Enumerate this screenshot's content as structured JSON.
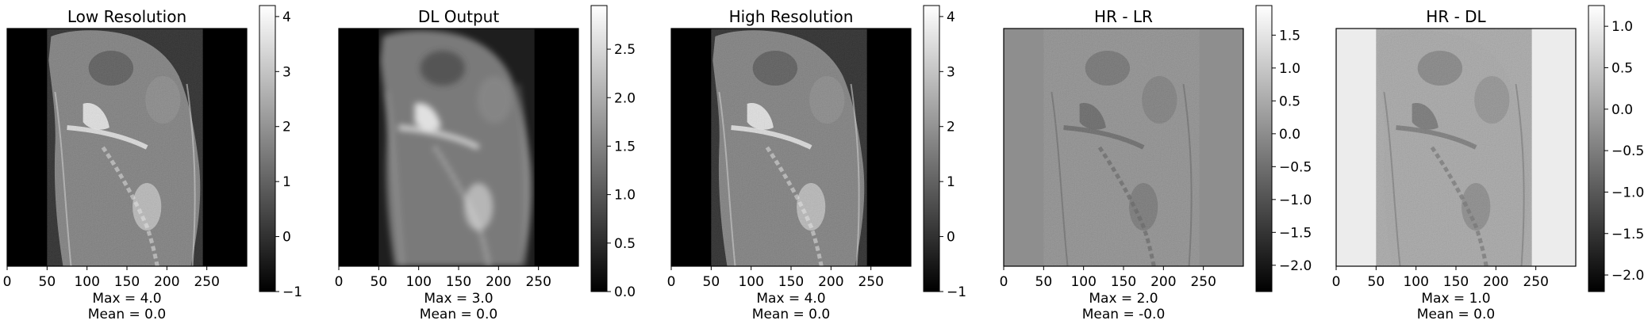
{
  "chart_data": [
    {
      "type": "heatmap",
      "title": "Low Resolution",
      "colormap": "gray",
      "x_ticks": [
        "0",
        "50",
        "100",
        "150",
        "200",
        "250"
      ],
      "x_range": [
        0,
        300
      ],
      "y_range": [
        0,
        300
      ],
      "colorbar": {
        "range": [
          -1.0,
          4.2
        ],
        "ticks": [
          4,
          3,
          2,
          1,
          0,
          -1
        ],
        "tick_labels": [
          "4",
          "3",
          "2",
          "1",
          "0",
          "−1"
        ]
      },
      "stats": {
        "max_label": "Max = 4.0",
        "mean_label": "Mean = 0.0"
      },
      "background": "dark",
      "band": [
        0,
        50,
        245,
        300
      ]
    },
    {
      "type": "heatmap",
      "title": "DL Output",
      "colormap": "gray",
      "x_ticks": [
        "0",
        "50",
        "100",
        "150",
        "200",
        "250"
      ],
      "x_range": [
        0,
        300
      ],
      "y_range": [
        0,
        300
      ],
      "colorbar": {
        "range": [
          0.0,
          2.95
        ],
        "ticks": [
          2.5,
          2.0,
          1.5,
          1.0,
          0.5,
          0.0
        ],
        "tick_labels": [
          "2.5",
          "2.0",
          "1.5",
          "1.0",
          "0.5",
          "0.0"
        ]
      },
      "stats": {
        "max_label": "Max = 3.0",
        "mean_label": "Mean = 0.0"
      },
      "background": "dark",
      "band": [
        0,
        50,
        245,
        300
      ]
    },
    {
      "type": "heatmap",
      "title": "High Resolution",
      "colormap": "gray",
      "x_ticks": [
        "0",
        "50",
        "100",
        "150",
        "200",
        "250"
      ],
      "x_range": [
        0,
        300
      ],
      "y_range": [
        0,
        300
      ],
      "colorbar": {
        "range": [
          -1.0,
          4.2
        ],
        "ticks": [
          4,
          3,
          2,
          1,
          0,
          -1
        ],
        "tick_labels": [
          "4",
          "3",
          "2",
          "1",
          "0",
          "−1"
        ]
      },
      "stats": {
        "max_label": "Max = 4.0",
        "mean_label": "Mean = 0.0"
      },
      "background": "dark",
      "band": [
        0,
        50,
        245,
        300
      ]
    },
    {
      "type": "heatmap",
      "title": "HR - LR",
      "colormap": "gray",
      "x_ticks": [
        "0",
        "50",
        "100",
        "150",
        "200",
        "250"
      ],
      "x_range": [
        0,
        300
      ],
      "y_range": [
        0,
        300
      ],
      "colorbar": {
        "range": [
          -2.4,
          1.95
        ],
        "ticks": [
          1.5,
          1.0,
          0.5,
          0.0,
          -0.5,
          -1.0,
          -1.5,
          -2.0
        ],
        "tick_labels": [
          "1.5",
          "1.0",
          "0.5",
          "0.0",
          "−0.5",
          "−1.0",
          "−1.5",
          "−2.0"
        ]
      },
      "stats": {
        "max_label": "Max = 2.0",
        "mean_label": "Mean = -0.0"
      },
      "background": "mid",
      "band": [
        0,
        50,
        245,
        300
      ]
    },
    {
      "type": "heatmap",
      "title": "HR - DL",
      "colormap": "gray",
      "x_ticks": [
        "0",
        "50",
        "100",
        "150",
        "200",
        "250"
      ],
      "x_range": [
        0,
        300
      ],
      "y_range": [
        0,
        300
      ],
      "colorbar": {
        "range": [
          -2.2,
          1.25
        ],
        "ticks": [
          1.0,
          0.5,
          0.0,
          -0.5,
          -1.0,
          -1.5,
          -2.0
        ],
        "tick_labels": [
          "1.0",
          "0.5",
          "0.0",
          "−0.5",
          "−1.0",
          "−1.5",
          "−2.0"
        ]
      },
      "stats": {
        "max_label": "Max = 1.0",
        "mean_label": "Mean = 0.0"
      },
      "background": "light",
      "band": [
        0,
        50,
        245,
        300
      ]
    }
  ]
}
